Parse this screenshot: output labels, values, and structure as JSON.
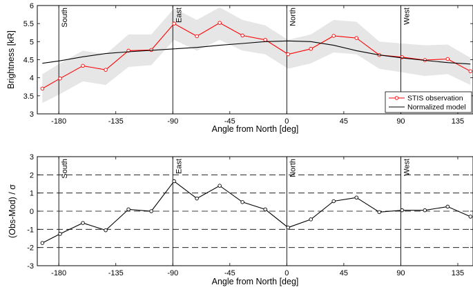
{
  "chart_data": [
    {
      "type": "line",
      "xlabel": "Angle from North [deg]",
      "ylabel": "Brightness [kR]",
      "xlim": [
        -197,
        147
      ],
      "ylim": [
        3,
        6
      ],
      "xticks": [
        -180,
        -135,
        -90,
        -45,
        0,
        45,
        90,
        135
      ],
      "xtick_labels": [
        "-180",
        "-135",
        "-90",
        "-45",
        "0",
        "45",
        "90",
        "135"
      ],
      "yticks": [
        3,
        3.5,
        4,
        4.5,
        5,
        5.5,
        6
      ],
      "ytick_labels": [
        "3",
        "3.5",
        "4",
        "4.5",
        "5",
        "5.5",
        "6"
      ],
      "grid": false,
      "legend_position": "bottom-right",
      "reference_lines": [
        {
          "x": -180,
          "label": "South"
        },
        {
          "x": -90,
          "label": "East"
        },
        {
          "x": 0,
          "label": "North"
        },
        {
          "x": 90,
          "label": "West"
        }
      ],
      "x": [
        -193,
        -179,
        -161,
        -143,
        -125,
        -107,
        -89,
        -71,
        -53,
        -35,
        -17,
        1,
        19,
        37,
        55,
        73,
        91,
        109,
        127,
        145
      ],
      "series": [
        {
          "name": "STIS observation",
          "color": "#ff0000",
          "marker": "circle",
          "values": [
            3.7,
            3.98,
            4.33,
            4.22,
            4.75,
            4.77,
            5.5,
            5.15,
            5.52,
            5.17,
            5.05,
            4.65,
            4.8,
            5.16,
            5.1,
            4.63,
            4.57,
            4.49,
            4.52,
            4.18
          ],
          "band_lower": [
            3.3,
            3.55,
            3.9,
            3.8,
            4.3,
            4.35,
            5.05,
            4.75,
            5.05,
            4.75,
            4.65,
            4.25,
            4.4,
            4.7,
            4.65,
            4.25,
            4.15,
            4.05,
            4.1,
            3.8
          ],
          "band_upper": [
            4.1,
            4.4,
            4.75,
            4.65,
            5.2,
            5.2,
            5.92,
            5.6,
            5.95,
            5.6,
            5.45,
            5.05,
            5.2,
            5.6,
            5.55,
            5.0,
            4.95,
            4.9,
            4.92,
            4.55
          ],
          "band_color": "#e6e6e6"
        },
        {
          "name": "Normalized model",
          "color": "#000000",
          "marker": "none",
          "values": [
            4.4,
            4.47,
            4.58,
            4.67,
            4.72,
            4.76,
            4.8,
            4.84,
            4.9,
            4.95,
            5.0,
            5.02,
            5.0,
            4.9,
            4.75,
            4.63,
            4.55,
            4.48,
            4.42,
            4.38
          ]
        }
      ]
    },
    {
      "type": "line",
      "xlabel": "Angle from North [deg]",
      "ylabel": "(Obs-Mod) / σ",
      "xlim": [
        -197,
        147
      ],
      "ylim": [
        -3,
        3
      ],
      "xticks": [
        -180,
        -135,
        -90,
        -45,
        0,
        45,
        90,
        135
      ],
      "xtick_labels": [
        "-180",
        "-135",
        "-90",
        "-45",
        "0",
        "45",
        "90",
        "135"
      ],
      "yticks": [
        -3,
        -2,
        -1,
        0,
        1,
        2,
        3
      ],
      "ytick_labels": [
        "-3",
        "-2",
        "-1",
        "0",
        "1",
        "2",
        "3"
      ],
      "grid": "dashed horizontal at -2, -1, 0, 1, 2",
      "dashed_lines_y": [
        -2,
        -1,
        0,
        1,
        2
      ],
      "reference_lines": [
        {
          "x": -180,
          "label": "South"
        },
        {
          "x": -90,
          "label": "East"
        },
        {
          "x": 0,
          "label": "North"
        },
        {
          "x": 90,
          "label": "West"
        }
      ],
      "x": [
        -193,
        -179,
        -161,
        -143,
        -125,
        -107,
        -89,
        -71,
        -53,
        -35,
        -17,
        1,
        19,
        37,
        55,
        73,
        91,
        109,
        127,
        145
      ],
      "series": [
        {
          "color": "#000000",
          "marker": "circle",
          "values": [
            -1.75,
            -1.25,
            -0.65,
            -1.05,
            0.1,
            0.0,
            1.65,
            0.7,
            1.4,
            0.5,
            0.1,
            -0.9,
            -0.45,
            0.55,
            0.75,
            -0.05,
            0.05,
            0.05,
            0.25,
            -0.3
          ]
        }
      ]
    }
  ]
}
